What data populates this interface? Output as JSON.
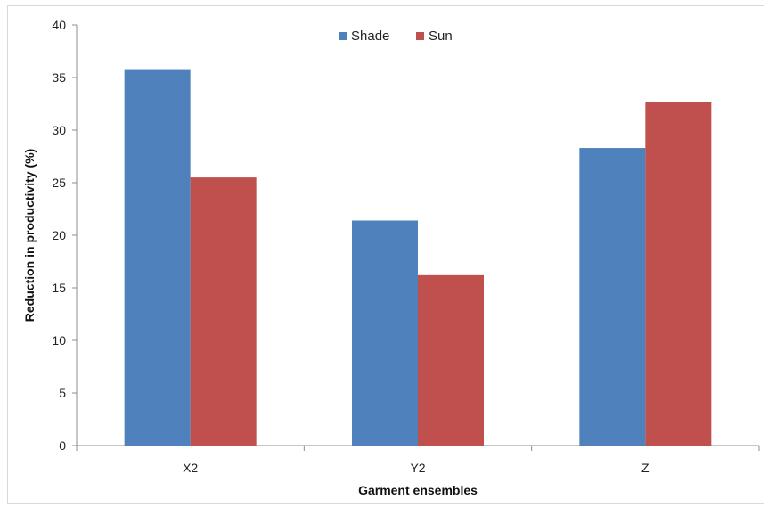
{
  "chart_data": {
    "type": "bar",
    "title": "",
    "xlabel": "Garment ensembles",
    "ylabel": "Reduction in productivity (%)",
    "categories": [
      "X2",
      "Y2",
      "Z"
    ],
    "series": [
      {
        "name": "Shade",
        "values": [
          35.8,
          21.4,
          28.3
        ],
        "color": "#4f81bd"
      },
      {
        "name": "Sun",
        "values": [
          25.5,
          16.2,
          32.7
        ],
        "color": "#c0504d"
      }
    ],
    "ylim": [
      0,
      40
    ],
    "yticks": [
      "0",
      "5",
      "10",
      "15",
      "20",
      "25",
      "30",
      "35",
      "40"
    ],
    "grid": false,
    "legend": "top-center"
  }
}
